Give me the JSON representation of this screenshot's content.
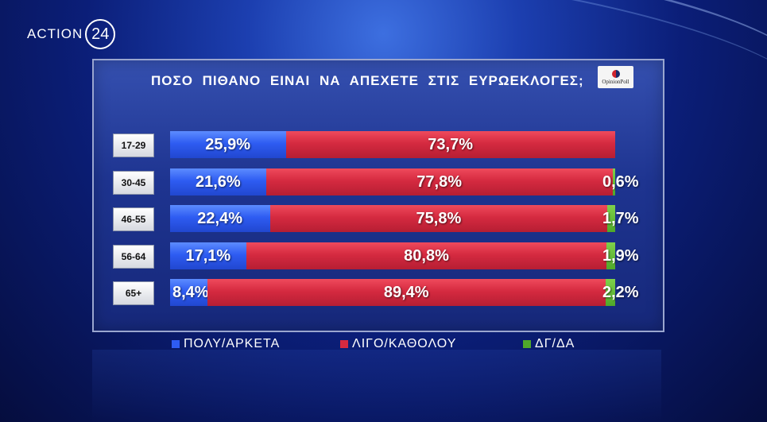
{
  "brand": {
    "name": "ACTION",
    "number": "24"
  },
  "poll_logo": {
    "text": "OpinionPoll"
  },
  "chart_data": {
    "type": "bar",
    "title": "ΠΟΣΟ ΠΙΘΑΝΟ ΕΙΝΑΙ ΝΑ ΑΠΕΧΕΤΕ ΣΤΙΣ ΕΥΡΩΕΚΛΟΓΕΣ;",
    "stacked": true,
    "orientation": "horizontal",
    "categories": [
      "17-29",
      "30-45",
      "46-55",
      "56-64",
      "65+"
    ],
    "series": [
      {
        "name": "ΠΟΛΥ/ΑΡΚΕΤΑ",
        "color": "#2e5cf2",
        "values": [
          25.9,
          21.6,
          22.4,
          17.1,
          8.4
        ],
        "labels": [
          "25,9%",
          "21,6%",
          "22,4%",
          "17,1%",
          "8,4%"
        ]
      },
      {
        "name": "ΛΙΓΟ/ΚΑΘΟΛΟΥ",
        "color": "#d52a40",
        "values": [
          73.7,
          77.8,
          75.8,
          80.8,
          89.4
        ],
        "labels": [
          "73,7%",
          "77,8%",
          "75,8%",
          "80,8%",
          "89,4%"
        ]
      },
      {
        "name": "ΔΓ/ΔΑ",
        "color": "#4fa82a",
        "values": [
          0,
          0.6,
          1.7,
          1.9,
          2.2
        ],
        "labels": [
          "",
          "0,6%",
          "1,7%",
          "1,9%",
          "2,2%"
        ]
      }
    ],
    "legend_position": "bottom"
  }
}
